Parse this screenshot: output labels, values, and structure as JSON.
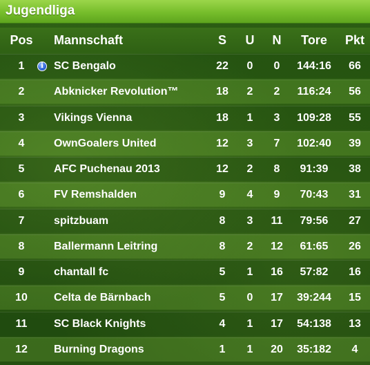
{
  "title": "Jugendliga",
  "headers": {
    "pos": "Pos",
    "team": "Mannschaft",
    "s": "S",
    "u": "U",
    "n": "N",
    "tore": "Tore",
    "pkt": "Pkt"
  },
  "info_icon_glyph": "i",
  "rows": [
    {
      "pos": "1",
      "team": "SC Bengalo",
      "s": "22",
      "u": "0",
      "n": "0",
      "tore": "144:16",
      "pkt": "66",
      "icon": "info-icon"
    },
    {
      "pos": "2",
      "team": "Abknicker Revolution™",
      "s": "18",
      "u": "2",
      "n": "2",
      "tore": "116:24",
      "pkt": "56"
    },
    {
      "pos": "3",
      "team": "Vikings Vienna",
      "s": "18",
      "u": "1",
      "n": "3",
      "tore": "109:28",
      "pkt": "55"
    },
    {
      "pos": "4",
      "team": "OwnGoalers United",
      "s": "12",
      "u": "3",
      "n": "7",
      "tore": "102:40",
      "pkt": "39"
    },
    {
      "pos": "5",
      "team": "AFC Puchenau 2013",
      "s": "12",
      "u": "2",
      "n": "8",
      "tore": "91:39",
      "pkt": "38"
    },
    {
      "pos": "6",
      "team": "FV Remshalden",
      "s": "9",
      "u": "4",
      "n": "9",
      "tore": "70:43",
      "pkt": "31"
    },
    {
      "pos": "7",
      "team": "spitzbuam",
      "s": "8",
      "u": "3",
      "n": "11",
      "tore": "79:56",
      "pkt": "27"
    },
    {
      "pos": "8",
      "team": "Ballermann Leitring",
      "s": "8",
      "u": "2",
      "n": "12",
      "tore": "61:65",
      "pkt": "26"
    },
    {
      "pos": "9",
      "team": "chantall fc",
      "s": "5",
      "u": "1",
      "n": "16",
      "tore": "57:82",
      "pkt": "16"
    },
    {
      "pos": "10",
      "team": "Celta de Bärnbach",
      "s": "5",
      "u": "0",
      "n": "17",
      "tore": "39:244",
      "pkt": "15"
    },
    {
      "pos": "11",
      "team": "SC Black Knights",
      "s": "4",
      "u": "1",
      "n": "17",
      "tore": "54:138",
      "pkt": "13"
    },
    {
      "pos": "12",
      "team": "Burning Dragons",
      "s": "1",
      "u": "1",
      "n": "20",
      "tore": "35:182",
      "pkt": "4"
    }
  ],
  "colors": {
    "title_bar": "#76bd2b",
    "background": "#27560f",
    "text": "#ffffff",
    "info_icon": "#2f66d6"
  }
}
